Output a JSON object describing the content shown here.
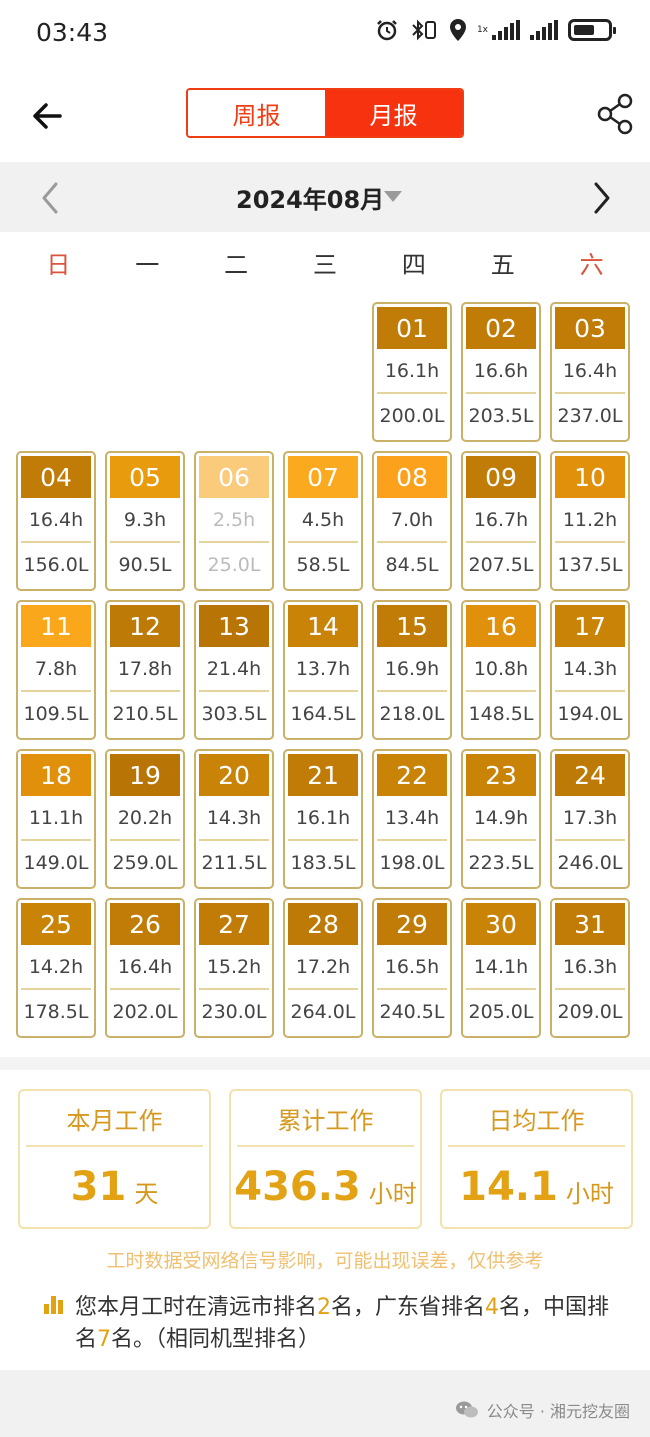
{
  "status": {
    "time": "03:43",
    "network": "1x"
  },
  "header": {
    "tabs": [
      {
        "label": "周报",
        "active": false
      },
      {
        "label": "月报",
        "active": true
      }
    ]
  },
  "month": {
    "label": "2024年08月"
  },
  "weekdays": [
    "日",
    "一",
    "二",
    "三",
    "四",
    "五",
    "六"
  ],
  "calendar": {
    "leading_empty": 4,
    "days": [
      {
        "num": "01",
        "hours": "16.1h",
        "fuel": "200.0L",
        "color": "#c07c06"
      },
      {
        "num": "02",
        "hours": "16.6h",
        "fuel": "203.5L",
        "color": "#c07c06"
      },
      {
        "num": "03",
        "hours": "16.4h",
        "fuel": "237.0L",
        "color": "#c07c06"
      },
      {
        "num": "04",
        "hours": "16.4h",
        "fuel": "156.0L",
        "color": "#c07c06"
      },
      {
        "num": "05",
        "hours": "9.3h",
        "fuel": "90.5L",
        "color": "#e99b0e"
      },
      {
        "num": "06",
        "hours": "2.5h",
        "fuel": "25.0L",
        "color": "#f9cb7a",
        "dim": true
      },
      {
        "num": "07",
        "hours": "4.5h",
        "fuel": "58.5L",
        "color": "#fba91e"
      },
      {
        "num": "08",
        "hours": "7.0h",
        "fuel": "84.5L",
        "color": "#fba11c"
      },
      {
        "num": "09",
        "hours": "16.7h",
        "fuel": "207.5L",
        "color": "#c07c06"
      },
      {
        "num": "10",
        "hours": "11.2h",
        "fuel": "137.5L",
        "color": "#e0900b"
      },
      {
        "num": "11",
        "hours": "7.8h",
        "fuel": "109.5L",
        "color": "#fba71b"
      },
      {
        "num": "12",
        "hours": "17.8h",
        "fuel": "210.5L",
        "color": "#bd7a06"
      },
      {
        "num": "13",
        "hours": "21.4h",
        "fuel": "303.5L",
        "color": "#b87405"
      },
      {
        "num": "14",
        "hours": "13.7h",
        "fuel": "164.5L",
        "color": "#c98306"
      },
      {
        "num": "15",
        "hours": "16.9h",
        "fuel": "218.0L",
        "color": "#c07c06"
      },
      {
        "num": "16",
        "hours": "10.8h",
        "fuel": "148.5L",
        "color": "#e0900b"
      },
      {
        "num": "17",
        "hours": "14.3h",
        "fuel": "194.0L",
        "color": "#c98306"
      },
      {
        "num": "18",
        "hours": "11.1h",
        "fuel": "149.0L",
        "color": "#e0900b"
      },
      {
        "num": "19",
        "hours": "20.2h",
        "fuel": "259.0L",
        "color": "#b87405"
      },
      {
        "num": "20",
        "hours": "14.3h",
        "fuel": "211.5L",
        "color": "#c98306"
      },
      {
        "num": "21",
        "hours": "16.1h",
        "fuel": "183.5L",
        "color": "#c07c06"
      },
      {
        "num": "22",
        "hours": "13.4h",
        "fuel": "198.0L",
        "color": "#c98306"
      },
      {
        "num": "23",
        "hours": "14.9h",
        "fuel": "223.5L",
        "color": "#c98306"
      },
      {
        "num": "24",
        "hours": "17.3h",
        "fuel": "246.0L",
        "color": "#bd7a06"
      },
      {
        "num": "25",
        "hours": "14.2h",
        "fuel": "178.5L",
        "color": "#c98306"
      },
      {
        "num": "26",
        "hours": "16.4h",
        "fuel": "202.0L",
        "color": "#c07c06"
      },
      {
        "num": "27",
        "hours": "15.2h",
        "fuel": "230.0L",
        "color": "#c07c06"
      },
      {
        "num": "28",
        "hours": "17.2h",
        "fuel": "264.0L",
        "color": "#bd7a06"
      },
      {
        "num": "29",
        "hours": "16.5h",
        "fuel": "240.5L",
        "color": "#c07c06"
      },
      {
        "num": "30",
        "hours": "14.1h",
        "fuel": "205.0L",
        "color": "#c98306"
      },
      {
        "num": "31",
        "hours": "16.3h",
        "fuel": "209.0L",
        "color": "#c07c06"
      }
    ]
  },
  "stats": [
    {
      "title": "本月工作",
      "value": "31",
      "unit": "天"
    },
    {
      "title": "累计工作",
      "value": "436.3",
      "unit": "小时"
    },
    {
      "title": "日均工作",
      "value": "14.1",
      "unit": "小时"
    }
  ],
  "disclaimer": "工时数据受网络信号影响，可能出现误差，仅供参考",
  "ranking": {
    "p1": "您本月工时在清远市排名",
    "city_rank": "2",
    "p2": "名，广东省排名",
    "province_rank": "4",
    "p3": "名，中国排名",
    "national_rank": "7",
    "p4": "名。（相同机型排名）"
  },
  "watermark": "公众号 · 湘元挖友圈",
  "colors": {
    "accent_red": "#f7320e",
    "gold": "#e3a214"
  }
}
